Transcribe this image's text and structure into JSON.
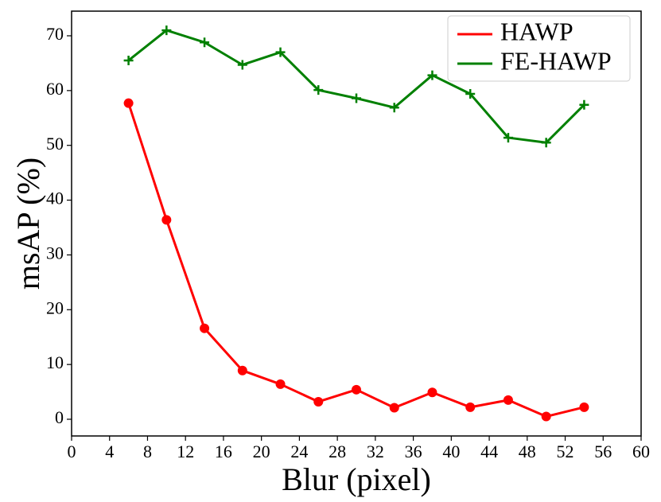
{
  "chart_data": {
    "type": "line",
    "x_label": "Blur (pixel)",
    "y_label": "msAP (%)",
    "x": [
      6,
      10,
      14,
      18,
      22,
      26,
      30,
      34,
      38,
      42,
      46,
      50,
      54
    ],
    "series": [
      {
        "name": "HAWP",
        "color": "#ff0000",
        "marker": "circle",
        "values": [
          57.7,
          36.4,
          16.6,
          8.9,
          6.4,
          3.2,
          5.4,
          2.1,
          4.9,
          2.2,
          3.5,
          0.5,
          2.2
        ]
      },
      {
        "name": "FE-HAWP",
        "color": "#008000",
        "marker": "plus",
        "values": [
          65.5,
          71.0,
          68.8,
          64.7,
          67.0,
          60.1,
          58.6,
          56.9,
          62.8,
          59.4,
          51.4,
          50.5,
          57.4
        ]
      }
    ],
    "xlim": [
      0,
      60
    ],
    "ylim": [
      -3.05,
      74.5
    ],
    "xticks": [
      0,
      4,
      8,
      12,
      16,
      20,
      24,
      28,
      32,
      36,
      40,
      44,
      48,
      52,
      56,
      60
    ],
    "yticks": [
      0,
      10,
      20,
      30,
      40,
      50,
      60,
      70
    ],
    "grid": false,
    "legend": "upper right"
  }
}
